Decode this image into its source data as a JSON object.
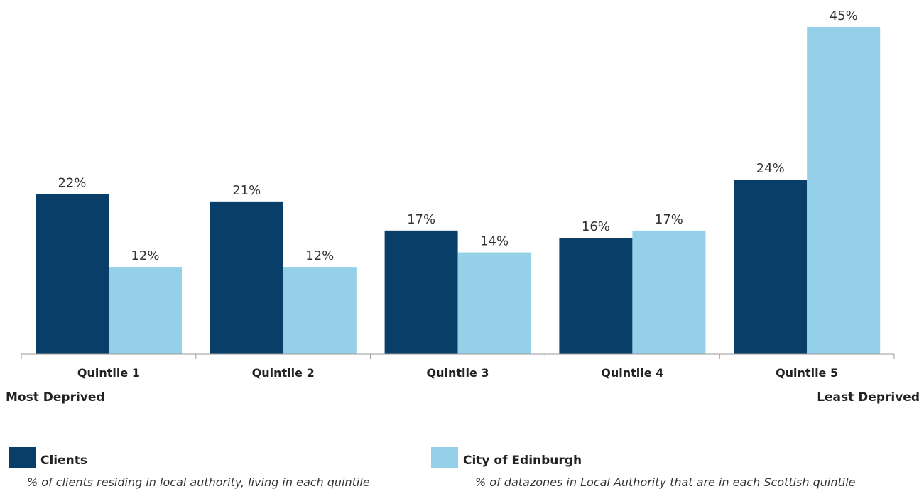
{
  "chart_data": {
    "type": "bar",
    "categories": [
      "Quintile 1",
      "Quintile 2",
      "Quintile 3",
      "Quintile 4",
      "Quintile 5"
    ],
    "series": [
      {
        "name": "Clients",
        "values": [
          22,
          21,
          17,
          16,
          24
        ],
        "color": "#083e67",
        "data_labels": [
          "22%",
          "21%",
          "17%",
          "16%",
          "24%"
        ]
      },
      {
        "name": "City of Edinburgh",
        "values": [
          12,
          12,
          14,
          17,
          45
        ],
        "color": "#94d1e8",
        "data_labels": [
          "12%",
          "12%",
          "14%",
          "17%",
          "45%"
        ]
      }
    ],
    "ylim": [
      0,
      45
    ],
    "grid": false,
    "legend_position": "bottom",
    "extremes": {
      "left": "Most Deprived",
      "right": "Least Deprived"
    },
    "legend": [
      {
        "name": "Clients",
        "description": "% of clients residing in local authority, living in each quintile",
        "color": "#083e67"
      },
      {
        "name": "City of Edinburgh",
        "description": "% of datazones in Local Authority that are in each Scottish quintile",
        "color": "#94d1e8"
      }
    ]
  }
}
